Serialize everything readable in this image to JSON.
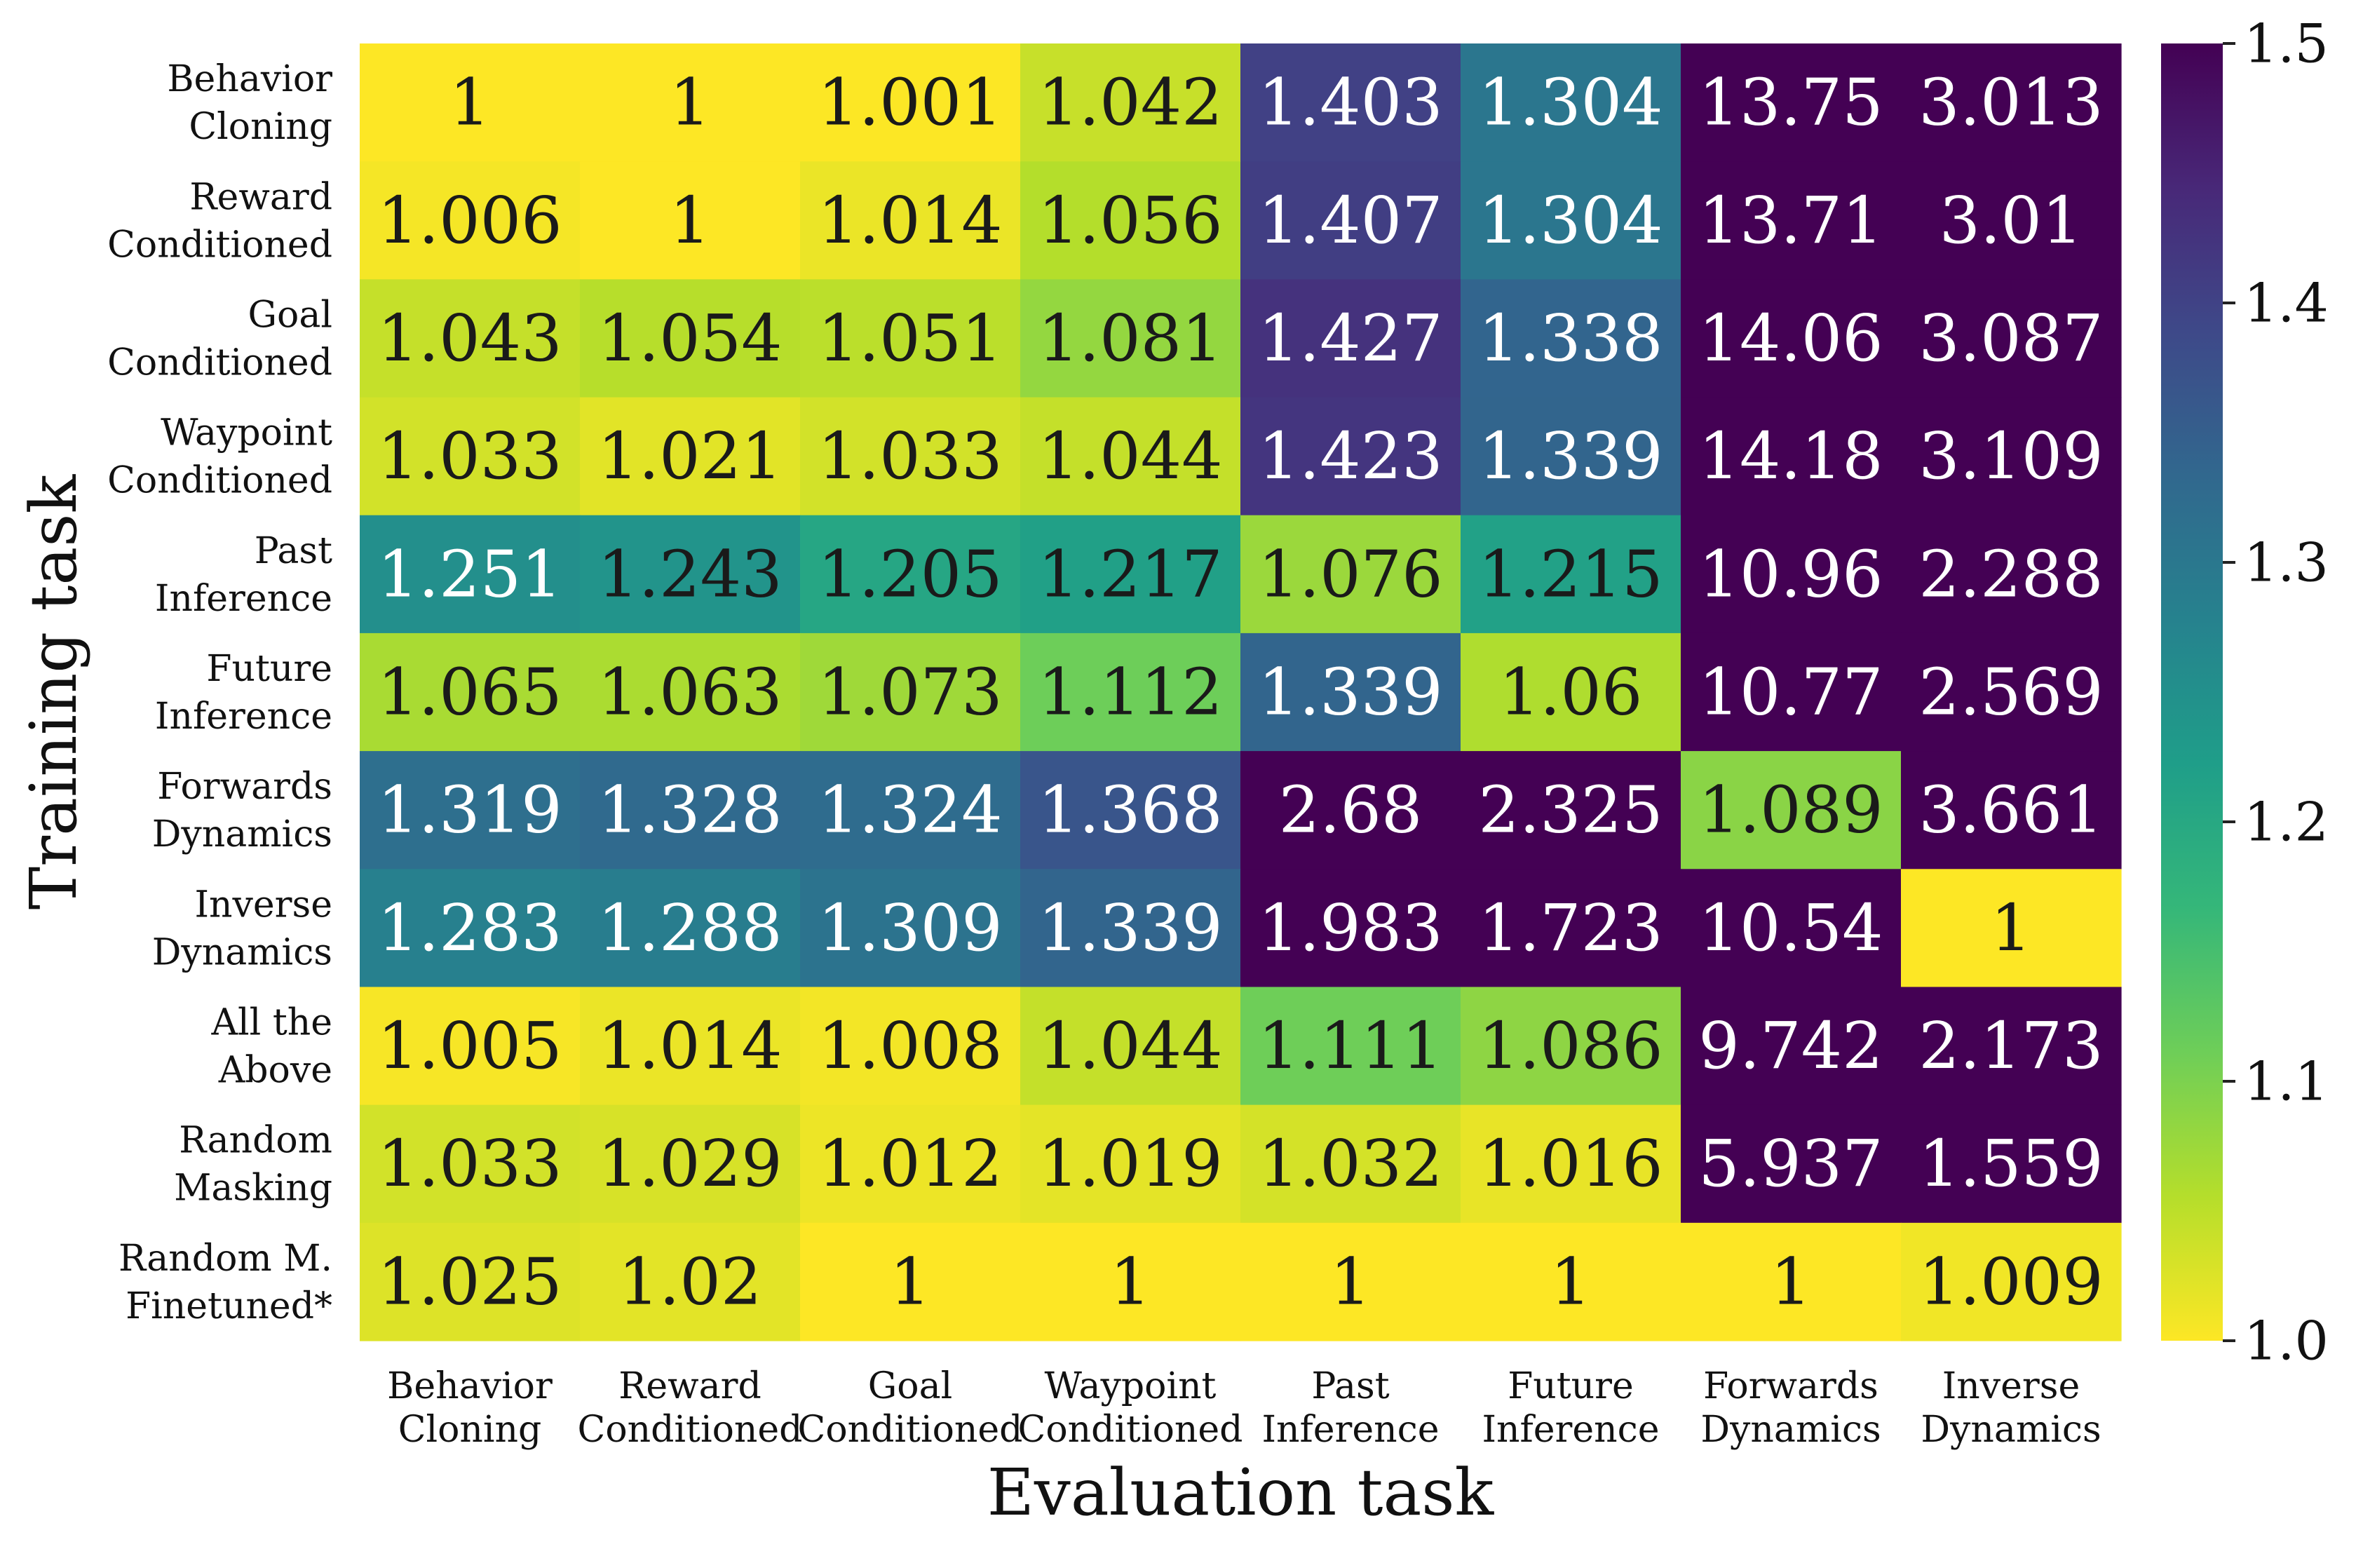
{
  "chart_data": {
    "type": "heatmap",
    "xlabel": "Evaluation task",
    "ylabel": "Training task",
    "columns": [
      [
        "Behavior",
        "Cloning"
      ],
      [
        "Reward",
        "Conditioned"
      ],
      [
        "Goal",
        "Conditioned"
      ],
      [
        "Waypoint",
        "Conditioned"
      ],
      [
        "Past",
        "Inference"
      ],
      [
        "Future",
        "Inference"
      ],
      [
        "Forwards",
        "Dynamics"
      ],
      [
        "Inverse",
        "Dynamics"
      ]
    ],
    "rows": [
      [
        "Behavior",
        "Cloning"
      ],
      [
        "Reward",
        "Conditioned"
      ],
      [
        "Goal",
        "Conditioned"
      ],
      [
        "Waypoint",
        "Conditioned"
      ],
      [
        "Past",
        "Inference"
      ],
      [
        "Future",
        "Inference"
      ],
      [
        "Forwards",
        "Dynamics"
      ],
      [
        "Inverse",
        "Dynamics"
      ],
      [
        "All the",
        "Above"
      ],
      [
        "Random",
        "Masking"
      ],
      [
        "Random M.",
        "Finetuned*"
      ]
    ],
    "values": [
      [
        "1",
        "1",
        "1.001",
        "1.042",
        "1.403",
        "1.304",
        "13.75",
        "3.013"
      ],
      [
        "1.006",
        "1",
        "1.014",
        "1.056",
        "1.407",
        "1.304",
        "13.71",
        "3.01"
      ],
      [
        "1.043",
        "1.054",
        "1.051",
        "1.081",
        "1.427",
        "1.338",
        "14.06",
        "3.087"
      ],
      [
        "1.033",
        "1.021",
        "1.033",
        "1.044",
        "1.423",
        "1.339",
        "14.18",
        "3.109"
      ],
      [
        "1.251",
        "1.243",
        "1.205",
        "1.217",
        "1.076",
        "1.215",
        "10.96",
        "2.288"
      ],
      [
        "1.065",
        "1.063",
        "1.073",
        "1.112",
        "1.339",
        "1.06",
        "10.77",
        "2.569"
      ],
      [
        "1.319",
        "1.328",
        "1.324",
        "1.368",
        "2.68",
        "2.325",
        "1.089",
        "3.661"
      ],
      [
        "1.283",
        "1.288",
        "1.309",
        "1.339",
        "1.983",
        "1.723",
        "10.54",
        "1"
      ],
      [
        "1.005",
        "1.014",
        "1.008",
        "1.044",
        "1.111",
        "1.086",
        "9.742",
        "2.173"
      ],
      [
        "1.033",
        "1.029",
        "1.012",
        "1.019",
        "1.032",
        "1.016",
        "5.937",
        "1.559"
      ],
      [
        "1.025",
        "1.02",
        "1",
        "1",
        "1",
        "1",
        "1",
        "1.009"
      ]
    ],
    "colorbar": {
      "range": [
        1.0,
        1.5
      ],
      "ticks": [
        "1.0",
        "1.1",
        "1.2",
        "1.3",
        "1.4",
        "1.5"
      ],
      "colormap": "viridis_r"
    }
  }
}
